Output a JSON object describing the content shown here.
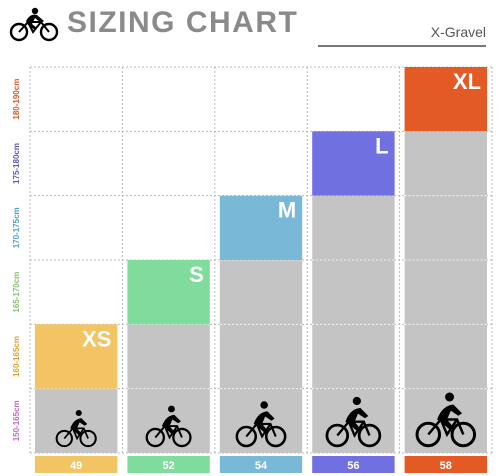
{
  "header": {
    "title": "SIZING CHART",
    "subtitle": "X-Gravel"
  },
  "chart_data": {
    "type": "bar",
    "title": "SIZING CHART",
    "subtitle": "X-Gravel",
    "categories": [
      "49",
      "52",
      "54",
      "56",
      "58"
    ],
    "size_labels": [
      "XS",
      "S",
      "M",
      "L",
      "XL"
    ],
    "height_bands": [
      "150-165cm",
      "160-165cm",
      "165-170cm",
      "170-175cm",
      "175-180cm",
      "180-190cm"
    ],
    "values": [
      2,
      3,
      4,
      5,
      6
    ],
    "colors": [
      "#f2c463",
      "#7fdc9c",
      "#7ab8d8",
      "#7070e0",
      "#e45a25"
    ],
    "gray": "#c4c4c4",
    "band_colors": [
      "#c06bc8",
      "#d9a42e",
      "#86c26e",
      "#4f9fc9",
      "#5a5ab5",
      "#d45a2a"
    ],
    "ylim": [
      0,
      6
    ],
    "grid": true
  }
}
